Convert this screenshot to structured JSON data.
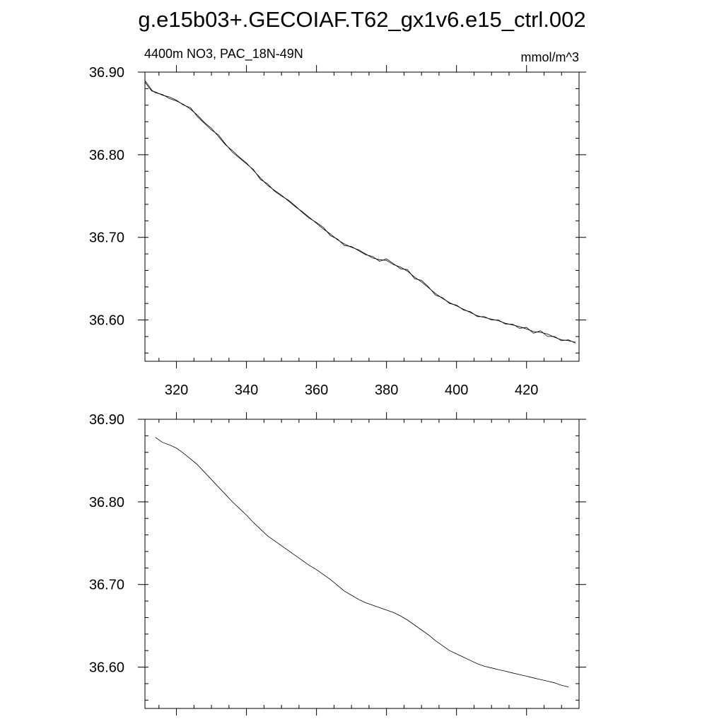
{
  "figure": {
    "title": "g.e15b03+.GECOIAF.T62_gx1v6.e15_ctrl.002"
  },
  "chart_data": [
    {
      "type": "line",
      "subtitle_left": "4400m NO3, PAC_18N-49N",
      "subtitle_right": "mmol/m^3",
      "xlim": [
        311,
        435
      ],
      "ylim": [
        36.55,
        36.9
      ],
      "xticks": [
        320,
        340,
        360,
        380,
        400,
        420
      ],
      "xtick_labels": [
        "320",
        "340",
        "360",
        "380",
        "400",
        "420"
      ],
      "yticks": [
        36.6,
        36.7,
        36.8,
        36.9
      ],
      "ytick_labels": [
        "36.60",
        "36.70",
        "36.80",
        "36.90"
      ],
      "grid": false,
      "series": [
        {
          "x": [
            311,
            312,
            313,
            314,
            316,
            318,
            320,
            322,
            324,
            326,
            328,
            330,
            332,
            334,
            336,
            338,
            340,
            342,
            344,
            346,
            348,
            350,
            352,
            354,
            356,
            358,
            360,
            362,
            364,
            366,
            368,
            370,
            372,
            374,
            376,
            378,
            380,
            382,
            384,
            386,
            388,
            390,
            392,
            394,
            396,
            398,
            400,
            402,
            404,
            406,
            408,
            410,
            412,
            414,
            416,
            418,
            420,
            422,
            424,
            426,
            428,
            430,
            432,
            434
          ],
          "values": [
            36.89,
            36.884,
            36.878,
            36.875,
            36.873,
            36.868,
            36.865,
            36.861,
            36.855,
            36.848,
            36.839,
            36.832,
            36.822,
            36.812,
            36.805,
            36.797,
            36.79,
            36.781,
            36.772,
            36.763,
            36.757,
            36.751,
            36.744,
            36.737,
            36.731,
            36.724,
            36.717,
            36.71,
            36.704,
            36.697,
            36.692,
            36.688,
            36.685,
            36.68,
            36.675,
            36.673,
            36.672,
            36.667,
            36.664,
            36.659,
            36.652,
            36.646,
            36.639,
            36.632,
            36.626,
            36.621,
            36.617,
            36.613,
            36.609,
            36.605,
            36.603,
            36.601,
            36.599,
            36.596,
            36.594,
            36.592,
            36.589,
            36.586,
            36.585,
            36.583,
            36.579,
            36.576,
            36.575,
            36.573
          ]
        },
        {
          "x": [
            311,
            312,
            313,
            314,
            316,
            318,
            320,
            322,
            324,
            326,
            328,
            330,
            332,
            334,
            336,
            338,
            340,
            342,
            344,
            346,
            348,
            350,
            352,
            354,
            356,
            358,
            360,
            362,
            364,
            366,
            368,
            370,
            372,
            374,
            376,
            378,
            380,
            382,
            384,
            386,
            388,
            390,
            392,
            394,
            396,
            398,
            400,
            402,
            404,
            406,
            408,
            410,
            412,
            414,
            416,
            418,
            420,
            422,
            424,
            426,
            428,
            430,
            432,
            434
          ],
          "values": [
            36.888,
            36.882,
            36.877,
            36.876,
            36.872,
            36.87,
            36.866,
            36.86,
            36.857,
            36.846,
            36.838,
            36.83,
            36.824,
            36.813,
            36.803,
            36.796,
            36.789,
            36.782,
            36.77,
            36.765,
            36.756,
            36.75,
            36.745,
            36.738,
            36.73,
            36.723,
            36.718,
            36.712,
            36.702,
            36.698,
            36.69,
            36.689,
            36.684,
            36.679,
            36.677,
            36.671,
            36.674,
            36.668,
            36.662,
            36.661,
            36.65,
            36.648,
            36.64,
            36.63,
            36.627,
            36.62,
            36.618,
            36.612,
            36.61,
            36.604,
            36.604,
            36.6,
            36.6,
            36.595,
            36.595,
            36.59,
            36.591,
            36.584,
            36.587,
            36.58,
            36.58,
            36.575,
            36.576,
            36.572
          ]
        }
      ]
    },
    {
      "type": "line",
      "xlim": [
        311,
        435
      ],
      "ylim": [
        36.55,
        36.9
      ],
      "xticks": [
        320,
        340,
        360,
        380,
        400,
        420
      ],
      "yticks": [
        36.6,
        36.7,
        36.8,
        36.9
      ],
      "ytick_labels": [
        "36.60",
        "36.70",
        "36.80",
        "36.90"
      ],
      "grid": false,
      "series": [
        {
          "x": [
            314,
            316,
            318,
            320,
            322,
            324,
            326,
            328,
            330,
            332,
            334,
            336,
            338,
            340,
            342,
            344,
            346,
            348,
            350,
            352,
            354,
            356,
            358,
            360,
            362,
            364,
            366,
            368,
            370,
            372,
            374,
            376,
            378,
            380,
            382,
            384,
            386,
            388,
            390,
            392,
            394,
            396,
            398,
            400,
            402,
            404,
            406,
            408,
            410,
            412,
            414,
            416,
            418,
            420,
            422,
            424,
            426,
            428,
            430,
            432
          ],
          "values": [
            36.878,
            36.872,
            36.869,
            36.865,
            36.859,
            36.852,
            36.845,
            36.836,
            36.827,
            36.818,
            36.809,
            36.8,
            36.792,
            36.784,
            36.775,
            36.767,
            36.759,
            36.753,
            36.747,
            36.741,
            36.735,
            36.729,
            36.723,
            36.718,
            36.712,
            36.706,
            36.699,
            36.692,
            36.687,
            36.682,
            36.678,
            36.675,
            36.672,
            36.669,
            36.666,
            36.662,
            36.657,
            36.651,
            36.645,
            36.639,
            36.632,
            36.626,
            36.62,
            36.616,
            36.612,
            36.608,
            36.604,
            36.601,
            36.599,
            36.597,
            36.595,
            36.593,
            36.591,
            36.589,
            36.587,
            36.585,
            36.583,
            36.581,
            36.578,
            36.576
          ]
        }
      ]
    }
  ]
}
